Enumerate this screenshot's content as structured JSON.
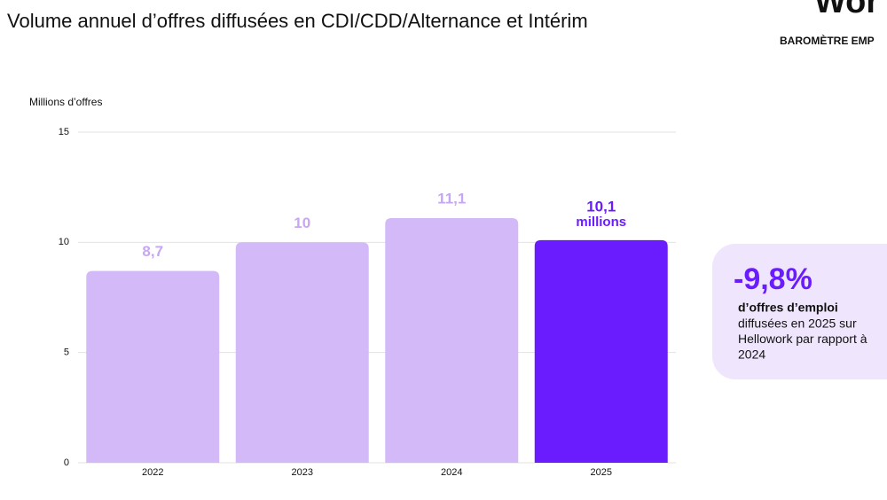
{
  "chart_data": {
    "type": "bar",
    "title": "Volume annuel d’offres diffusées en CDI/CDD/Alternance et Intérim",
    "y_label": "Millions d’offres",
    "categories": [
      "2022",
      "2023",
      "2024",
      "2025"
    ],
    "values": [
      8.7,
      10,
      11.1,
      10.1
    ],
    "value_labels": [
      "8,7",
      "10",
      "11,1",
      "10,1"
    ],
    "value_unit_label": "millions",
    "colors": [
      "#d3b9f8",
      "#d3b9f8",
      "#d3b9f8",
      "#6b1cff"
    ],
    "label_colors": [
      "#c7a6f4",
      "#c7a6f4",
      "#c7a6f4",
      "#6b1cff"
    ],
    "ylim": [
      0,
      15
    ],
    "yticks": [
      0,
      5,
      10,
      15
    ],
    "grid": true
  },
  "header": {
    "brand": "Wor",
    "subtitle": "BAROMÈTRE EMP"
  },
  "callout": {
    "value": "-9,8%",
    "bold": "d’offres d’emploi",
    "lines": [
      "diffusées en 2025 sur",
      "Hellowork par rapport à",
      "2024"
    ]
  }
}
